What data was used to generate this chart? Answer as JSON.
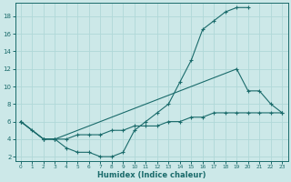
{
  "xlabel": "Humidex (Indice chaleur)",
  "bg_color": "#cce8e8",
  "line_color": "#1a6b6b",
  "grid_color": "#b0d8d8",
  "xlim": [
    -0.5,
    23.5
  ],
  "ylim": [
    1.5,
    19.5
  ],
  "xticks": [
    0,
    1,
    2,
    3,
    4,
    5,
    6,
    7,
    8,
    9,
    10,
    11,
    12,
    13,
    14,
    15,
    16,
    17,
    18,
    19,
    20,
    21,
    22,
    23
  ],
  "yticks": [
    2,
    4,
    6,
    8,
    10,
    12,
    14,
    16,
    18
  ],
  "line1_x": [
    0,
    1,
    2,
    3,
    4,
    5,
    6,
    7,
    8,
    9,
    10,
    11,
    12,
    13,
    14,
    15,
    16,
    17,
    18,
    19,
    20
  ],
  "line1_y": [
    6,
    5,
    4,
    4,
    3,
    2.5,
    2.5,
    2,
    2,
    2.5,
    5,
    6,
    7,
    8,
    10.5,
    13,
    16.5,
    17.5,
    18.5,
    19,
    19
  ],
  "line2_x": [
    0,
    2,
    3,
    19,
    20,
    21,
    22,
    23
  ],
  "line2_y": [
    6,
    4,
    4,
    12,
    9.5,
    9.5,
    8,
    7
  ],
  "line3_x": [
    0,
    2,
    3,
    4,
    5,
    6,
    7,
    8,
    9,
    10,
    11,
    12,
    13,
    14,
    15,
    16,
    17,
    18,
    19,
    20,
    21,
    22,
    23
  ],
  "line3_y": [
    6,
    4,
    4,
    4,
    4.5,
    4.5,
    4.5,
    5,
    5,
    5.5,
    5.5,
    5.5,
    6,
    6,
    6.5,
    6.5,
    7,
    7,
    7,
    7,
    7,
    7,
    7
  ]
}
